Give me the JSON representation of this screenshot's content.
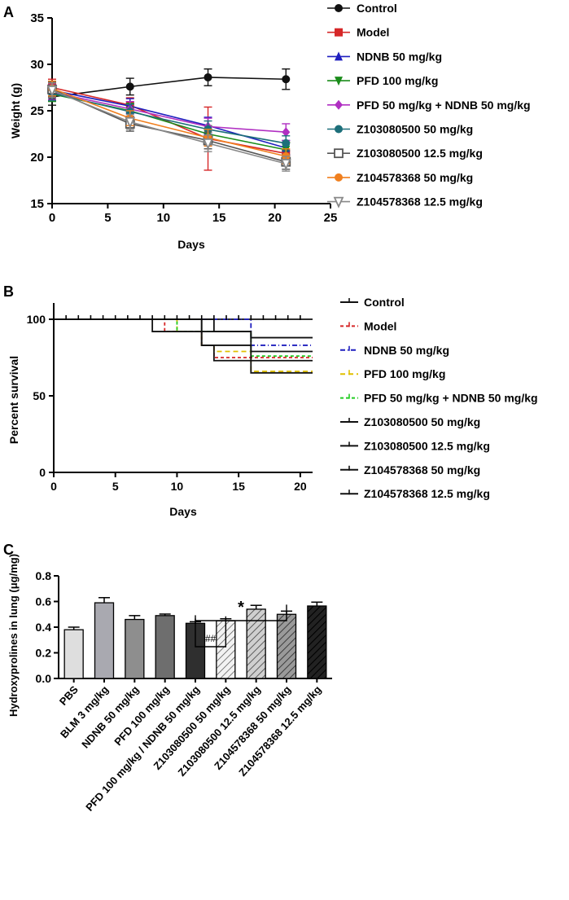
{
  "chart_data": [
    {
      "panel": "A",
      "type": "line",
      "xlabel": "Days",
      "ylabel": "Weight (g)",
      "xlim": [
        0,
        25
      ],
      "ylim": [
        15,
        35
      ],
      "xticks": [
        "0",
        "5",
        "10",
        "15",
        "20",
        "25"
      ],
      "yticks": [
        "15",
        "20",
        "25",
        "30",
        "35"
      ],
      "x": [
        0,
        7,
        14,
        21
      ],
      "series": [
        {
          "name": "Control",
          "color": "#111111",
          "marker": "circle",
          "values": [
            26.5,
            27.6,
            28.6,
            28.4
          ],
          "err": [
            0.9,
            0.9,
            0.9,
            1.1
          ]
        },
        {
          "name": "Model",
          "color": "#d62728",
          "marker": "square",
          "values": [
            27.5,
            25.6,
            22.0,
            20.4
          ],
          "err": [
            0.9,
            0.8,
            3.4,
            1.2
          ]
        },
        {
          "name": "NDNB 50 mg/kg",
          "color": "#1f1fbf",
          "marker": "triangle-up",
          "values": [
            27.2,
            25.5,
            23.4,
            21.0
          ],
          "err": [
            0.8,
            0.8,
            0.9,
            0.8
          ]
        },
        {
          "name": "PFD 100 mg/kg",
          "color": "#1a8c1a",
          "marker": "triangle-down",
          "values": [
            26.8,
            25.0,
            22.5,
            20.8
          ],
          "err": [
            0.8,
            0.8,
            0.9,
            0.8
          ]
        },
        {
          "name": "PFD    50 mg/kg + NDNB 50 mg/kg",
          "color": "#b02fc2",
          "marker": "diamond",
          "values": [
            27.0,
            25.2,
            23.3,
            22.7
          ],
          "err": [
            0.8,
            0.8,
            0.9,
            0.9
          ]
        },
        {
          "name": "Z103080500 50 mg/kg",
          "color": "#1d6f7a",
          "marker": "circle",
          "values": [
            26.9,
            24.9,
            23.0,
            21.5
          ],
          "err": [
            0.8,
            0.8,
            0.9,
            0.8
          ]
        },
        {
          "name": "Z103080500 12.5 mg/kg",
          "color": "#555555",
          "marker": "square-open",
          "values": [
            27.3,
            23.6,
            21.8,
            19.5
          ],
          "err": [
            0.8,
            0.8,
            0.9,
            0.8
          ]
        },
        {
          "name": "Z104578368 50 mg/kg",
          "color": "#f07f1e",
          "marker": "circle",
          "values": [
            27.4,
            24.2,
            22.1,
            20.1
          ],
          "err": [
            0.8,
            0.8,
            0.9,
            0.8
          ]
        },
        {
          "name": "Z104578368 12.5 mg/kg",
          "color": "#888888",
          "marker": "triangle-down-open",
          "values": [
            27.2,
            23.8,
            21.5,
            19.3
          ],
          "err": [
            0.8,
            0.8,
            0.9,
            0.8
          ]
        }
      ]
    },
    {
      "panel": "B",
      "type": "line",
      "subtype": "survival-step",
      "xlabel": "Days",
      "ylabel": "Percent survival",
      "xlim": [
        0,
        21
      ],
      "ylim": [
        0,
        100
      ],
      "xticks": [
        "0",
        "5",
        "10",
        "15",
        "20"
      ],
      "yticks": [
        "0",
        "50",
        "100"
      ],
      "series": [
        {
          "name": "Control",
          "color": "#111111",
          "dash": "",
          "steps": [
            [
              0,
              100
            ],
            [
              21,
              100
            ]
          ]
        },
        {
          "name": "Model",
          "color": "#d62728",
          "dash": "4,3",
          "steps": [
            [
              0,
              100
            ],
            [
              9,
              100
            ],
            [
              9,
              92
            ],
            [
              12,
              92
            ],
            [
              12,
              83
            ],
            [
              13,
              83
            ],
            [
              13,
              75
            ],
            [
              21,
              75
            ]
          ]
        },
        {
          "name": "NDNB 50 mg/kg",
          "color": "#1f1fbf",
          "dash": "6,3,1,3",
          "steps": [
            [
              0,
              100
            ],
            [
              16,
              100
            ],
            [
              16,
              83
            ],
            [
              21,
              83
            ]
          ]
        },
        {
          "name": "PFD 100 mg/kg",
          "color": "#e0c000",
          "dash": "6,4",
          "steps": [
            [
              0,
              100
            ],
            [
              10,
              100
            ],
            [
              10,
              92
            ],
            [
              12,
              92
            ],
            [
              12,
              83
            ],
            [
              13,
              83
            ],
            [
              13,
              79
            ],
            [
              16,
              79
            ],
            [
              16,
              66
            ],
            [
              21,
              66
            ]
          ]
        },
        {
          "name": "PFD    50 mg/kg + NDNB 50 mg/kg",
          "color": "#22cc22",
          "dash": "4,3",
          "steps": [
            [
              0,
              100
            ],
            [
              10,
              100
            ],
            [
              10,
              92
            ],
            [
              16,
              92
            ],
            [
              16,
              76
            ],
            [
              21,
              76
            ]
          ]
        },
        {
          "name": "Z103080500 50 mg/kg",
          "color": "#111111",
          "dash": "",
          "steps": [
            [
              0,
              100
            ],
            [
              13,
              100
            ],
            [
              13,
              92
            ],
            [
              16,
              92
            ],
            [
              16,
              88
            ],
            [
              21,
              88
            ]
          ]
        },
        {
          "name": "Z103080500 12.5 mg/kg",
          "color": "#111111",
          "dash": "",
          "steps": [
            [
              0,
              100
            ],
            [
              8,
              100
            ],
            [
              8,
              92
            ],
            [
              16,
              92
            ],
            [
              16,
              79
            ],
            [
              21,
              79
            ]
          ]
        },
        {
          "name": "Z104578368 50 mg/kg",
          "color": "#111111",
          "dash": "",
          "steps": [
            [
              0,
              100
            ],
            [
              12,
              100
            ],
            [
              12,
              83
            ],
            [
              13,
              83
            ],
            [
              13,
              73
            ],
            [
              21,
              73
            ]
          ]
        },
        {
          "name": "Z104578368 12.5 mg/kg",
          "color": "#111111",
          "dash": "",
          "steps": [
            [
              0,
              100
            ],
            [
              12,
              100
            ],
            [
              12,
              83
            ],
            [
              16,
              83
            ],
            [
              16,
              65
            ],
            [
              21,
              65
            ]
          ]
        }
      ],
      "censor_ticks_x": [
        0,
        1,
        2,
        3,
        4,
        5,
        6,
        7,
        8,
        9,
        10,
        11,
        12,
        13,
        14,
        15,
        16,
        17,
        18,
        19,
        20
      ]
    },
    {
      "panel": "C",
      "type": "bar",
      "ylabel": "Hydroxyprolines in lung (μg/mg)",
      "ylim": [
        0,
        0.8
      ],
      "yticks": [
        "0.0",
        "0.2",
        "0.4",
        "0.6",
        "0.8"
      ],
      "categories": [
        "PBS",
        "BLM 3 mg/kg",
        "NDNB 50 mg/kg",
        "PFD 100 mg/kg",
        "PFD 100 mg/kg / NDNB 50 mg/kg",
        "Z103080500 50 mg/kg",
        "Z103080500 12.5 mg/kg",
        "Z104578368 50 mg/kg",
        "Z104578368 12.5 mg/kg"
      ],
      "values": [
        0.38,
        0.59,
        0.46,
        0.49,
        0.43,
        0.45,
        0.54,
        0.5,
        0.565
      ],
      "err": [
        0.02,
        0.04,
        0.03,
        0.012,
        0.012,
        0.015,
        0.03,
        0.025,
        0.03
      ],
      "fills": [
        "#dedede",
        "#a9a9b0",
        "#8e8e8e",
        "#6e6e6e",
        "#2f2f2f",
        "hatch-light",
        "hatch-mid",
        "hatch-dark",
        "hatch-black"
      ],
      "annotations": [
        {
          "text": "*",
          "from": 4,
          "to": 7
        },
        {
          "text": "##",
          "from": 4,
          "to": 5
        }
      ]
    }
  ],
  "panel_labels": {
    "a": "A",
    "b": "B",
    "c": "C"
  }
}
